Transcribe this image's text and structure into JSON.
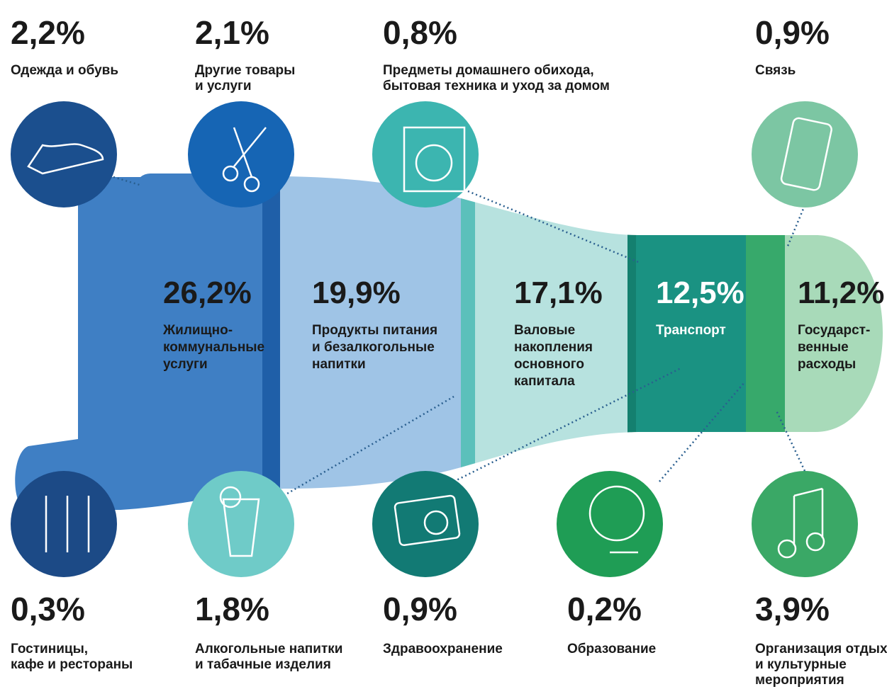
{
  "top_items": [
    {
      "value": "2,2%",
      "label": [
        "Одежда и обувь"
      ]
    },
    {
      "value": "2,1%",
      "label": [
        "Другие товары",
        "и услуги"
      ]
    },
    {
      "value": "0,8%",
      "label": [
        "Предметы домашнего обихода,",
        "бытовая техника и уход за домом"
      ]
    },
    {
      "value": "0,9%",
      "label": [
        "Связь"
      ]
    }
  ],
  "segments": [
    {
      "value": "26,2%",
      "label": [
        "Жилищно-",
        "коммунальные",
        "услуги"
      ]
    },
    {
      "value": "19,9%",
      "label": [
        "Продукты питания",
        "и безалкогольные",
        "напитки"
      ]
    },
    {
      "value": "17,1%",
      "label": [
        "Валовые",
        "накопления",
        "основного",
        "капитала"
      ]
    },
    {
      "value": "12,5%",
      "label": [
        "Транспорт"
      ]
    },
    {
      "value": "11,2%",
      "label": [
        "Государст-",
        "венные",
        "расходы"
      ]
    }
  ],
  "bottom_items": [
    {
      "value": "0,3%",
      "label": [
        "Гостиницы,",
        "кафе и рестораны"
      ]
    },
    {
      "value": "1,8%",
      "label": [
        "Алкогольные напитки",
        "и табачные изделия"
      ]
    },
    {
      "value": "0,9%",
      "label": [
        "Здравоохранение"
      ]
    },
    {
      "value": "0,2%",
      "label": [
        "Образование"
      ]
    },
    {
      "value": "3,9%",
      "label": [
        "Организация отдыха",
        "и культурные",
        "мероприятия"
      ]
    }
  ]
}
